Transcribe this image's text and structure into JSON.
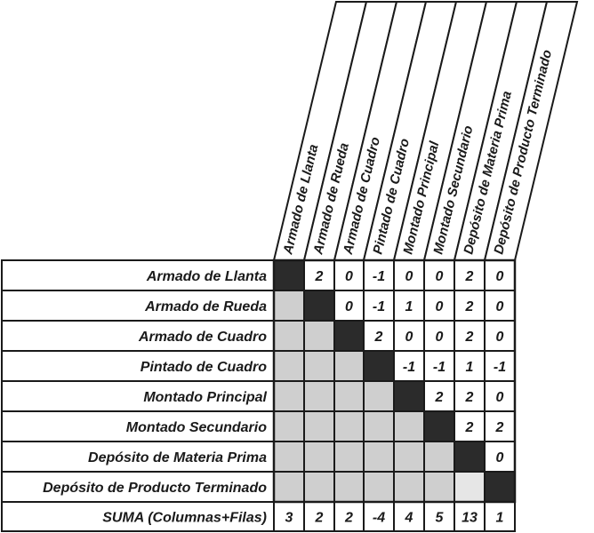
{
  "matrix": {
    "rows": [
      "Armado de Llanta",
      "Armado de Rueda",
      "Armado de Cuadro",
      "Pintado de Cuadro",
      "Montado Principal",
      "Montado Secundario",
      "Depósito de Materia Prima",
      "Depósito de Producto Terminado"
    ],
    "columns": [
      "Armado de Llanta",
      "Armado de Rueda",
      "Armado de Cuadro",
      "Pintado de Cuadro",
      "Montado Principal",
      "Montado Secundario",
      "Depósito de Materia Prima",
      "Depósito de Producto Terminado"
    ],
    "upper_values": [
      [
        "2",
        "0",
        "-1",
        "0",
        "0",
        "2",
        "0"
      ],
      [
        "0",
        "-1",
        "1",
        "0",
        "2",
        "0"
      ],
      [
        "2",
        "0",
        "0",
        "2",
        "0"
      ],
      [
        "-1",
        "-1",
        "1",
        "-1"
      ],
      [
        "2",
        "2",
        "0"
      ],
      [
        "2",
        "2"
      ],
      [
        "0"
      ],
      []
    ],
    "sum_label": "SUMA (Columnas+Filas)",
    "sums": [
      "3",
      "2",
      "2",
      "-4",
      "4",
      "5",
      "13",
      "1"
    ],
    "colors": {
      "diagonal": "#2b2b2b",
      "lower": "#cfcfcf",
      "lower_light": "#e6e6e6",
      "border": "#1a1a1a",
      "background": "#ffffff"
    }
  }
}
